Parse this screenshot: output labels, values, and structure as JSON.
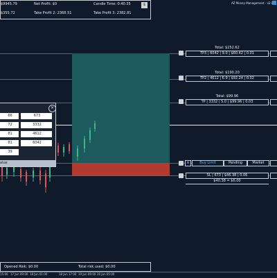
{
  "top_panel": {
    "rows": [
      [
        "$9945.79",
        "Net Profit: $0",
        "Candle Time: 0:40:35"
      ],
      [
        "$355.72",
        "Take Profit 2: 2368.51",
        "Take Profit 3: 2382.81"
      ]
    ],
    "button": "$"
  },
  "header": {
    "title": "AZ Money Management - v2.0"
  },
  "levels": [
    {
      "total": "Total: $252.62",
      "detail": "TP3 | 6042 | 9.0 | $60.42 | 0.01"
    },
    {
      "total": "Total: $190.20",
      "detail": "TP2 | 4612 | 6.9 | $92.24 | 0.02"
    },
    {
      "total": "Total: $99.96",
      "detail": "TP | 3332 | 5.0 | $99.96 | 0.03"
    }
  ],
  "order_buttons": [
    "Buy Limit",
    "Pending",
    "Market"
  ],
  "stop_loss": {
    "detail": "SL | 673 | $46.38 | 0.06",
    "risk": "$40.38 = $6.00"
  },
  "dialog": {
    "fields": [
      [
        "66",
        "673"
      ],
      [
        "72",
        "3332"
      ],
      [
        "81",
        "4612"
      ],
      [
        "81",
        "6042"
      ],
      [
        "39"
      ]
    ],
    "button": "alue"
  },
  "footer": {
    "opened_risk": "Opened Risk: $0.00",
    "total_risk": "Total risk used: $0.00"
  },
  "time_axis": [
    "15:00",
    "17 Jun 09:00",
    "18 Jun 01:00",
    "18 Jun 17:00",
    "19 Jun 09:00",
    "20 Jun 05:00"
  ]
}
